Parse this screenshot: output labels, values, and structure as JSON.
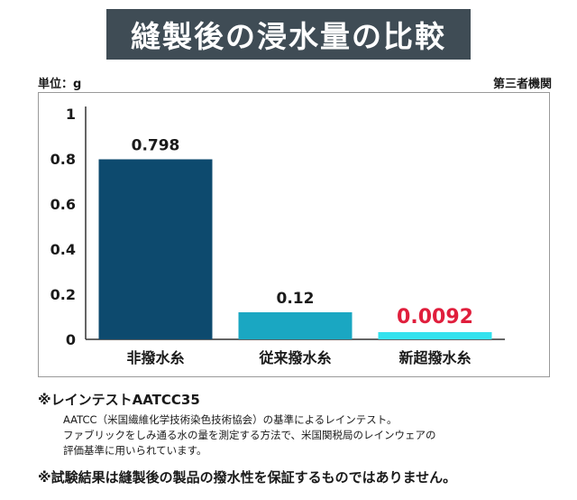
{
  "title": "縫製後の浸水量の比較",
  "unit": "単位：g",
  "source": "第三者機関",
  "chart_data": {
    "type": "bar",
    "categories": [
      "非撥水糸",
      "従来撥水糸",
      "新超撥水糸"
    ],
    "values": [
      0.798,
      0.12,
      0.0092
    ],
    "value_labels": [
      "0.798",
      "0.12",
      "0.0092"
    ],
    "colors": [
      "#0d4a6e",
      "#1aa7c2",
      "#33e2ee"
    ],
    "value_label_colors": [
      "#1a1a1a",
      "#1a1a1a",
      "#e01e3c"
    ],
    "ylim": [
      0,
      1
    ],
    "yticks": [
      "0",
      "0.2",
      "0.4",
      "0.6",
      "0.8",
      "1"
    ],
    "ytick_values": [
      0,
      0.2,
      0.4,
      0.6,
      0.8,
      1
    ],
    "grid": false
  },
  "notes": {
    "heading": "※レインテストAATCC35",
    "lines": [
      "AATCC（米国繊維化学技術染色技術協会）の基準によるレインテスト。",
      "ファブリックをしみ通る水の量を測定する方法で、米国関税局のレインウェアの",
      "評価基準に用いられています。"
    ]
  },
  "disclaimer": "※試験結果は縫製後の製品の撥水性を保証するものではありません。"
}
